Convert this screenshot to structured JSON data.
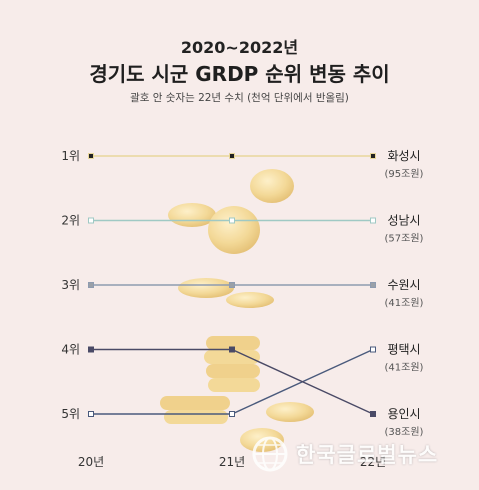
{
  "header": {
    "years_title": "2020~2022년",
    "main_title": "경기도 시군 GRDP 순위 변동 추이",
    "note": "괄호 안 숫자는 22년 수치 (천억 단위에서 반올림)"
  },
  "watermark": {
    "text": "한국글로벌뉴스"
  },
  "chart_data": {
    "type": "line",
    "title": "경기도 시군 GRDP 순위 변동 추이",
    "subtitle": "괄호 안 숫자는 22년 수치 (천억 단위에서 반올림)",
    "x": [
      "20년",
      "21년",
      "22년"
    ],
    "y_ticks": [
      "1위",
      "2위",
      "3위",
      "4위",
      "5위"
    ],
    "ylim": [
      1,
      5
    ],
    "y_inverted": true,
    "grid": false,
    "series": [
      {
        "name": "화성시",
        "values": [
          1,
          1,
          1
        ],
        "value_2022": "(95조원)",
        "color": "#e9d79b",
        "marker_color": "#222222"
      },
      {
        "name": "성남시",
        "values": [
          2,
          2,
          2
        ],
        "value_2022": "(57조원)",
        "color": "#9fc9c4",
        "marker_color": "#ffffff"
      },
      {
        "name": "수원시",
        "values": [
          3,
          3,
          3
        ],
        "value_2022": "(41조원)",
        "color": "#8e9bb0",
        "marker_color": "#9aa0a8"
      },
      {
        "name": "평택시",
        "values": [
          5,
          5,
          4
        ],
        "value_2022": "(41조원)",
        "color": "#4a5a7c",
        "marker_color": "#ffffff"
      },
      {
        "name": "용인시",
        "values": [
          4,
          4,
          5
        ],
        "value_2022": "(38조원)",
        "color": "#4a4a66",
        "marker_color": "#4a4a66"
      }
    ]
  }
}
